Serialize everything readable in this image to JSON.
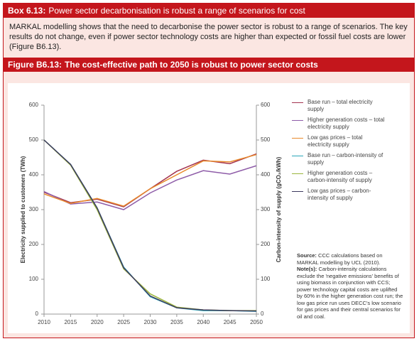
{
  "box": {
    "label": "Box 6.13:",
    "title": "Power sector decarbonisation is robust a range of scenarios for cost",
    "text": "MARKAL modelling shows that the need to decarbonise the power sector is robust to a range of scenarios. The key results do not change, even if power sector technology costs are higher than expected or fossil fuel costs are lower (Figure B6.13)."
  },
  "figure": {
    "label": "Figure B6.13:",
    "title": "The cost-effective path to 2050 is robust to power sector costs",
    "source_label": "Source:",
    "source": "CCC calculations based on MARKAL modelling by UCL (2010).",
    "note_label": "Note(s):",
    "note": "Carbon-intensity calculations exclude the 'negative emissions' benefits of using biomass in conjunction with CCS; power technology capital costs are uplifted by 60% in the higher generation cost run; the low gas price run uses DECC's low scenario for gas prices and their central scenarios for oil and coal."
  },
  "chart_data": {
    "type": "line",
    "x": [
      2010,
      2015,
      2020,
      2025,
      2030,
      2035,
      2040,
      2045,
      2050
    ],
    "xlim": [
      2010,
      2050
    ],
    "xticks": [
      2010,
      2015,
      2020,
      2025,
      2030,
      2035,
      2040,
      2045,
      2050
    ],
    "ylabel": "Electricity supplied to customers (TWh)",
    "ylim": [
      0,
      600
    ],
    "yticks": [
      0,
      100,
      200,
      300,
      400,
      500,
      600
    ],
    "y2label": "Carbon-intensity of supply (gCO₂/kWh)",
    "y2lim": [
      0,
      600
    ],
    "y2ticks": [
      0,
      100,
      200,
      300,
      400,
      500,
      600
    ],
    "grid": false,
    "legend": "right",
    "series": [
      {
        "name": "Base run – total electricity supply",
        "color": "#a3334f",
        "values": [
          350,
          320,
          330,
          308,
          360,
          410,
          442,
          432,
          460
        ]
      },
      {
        "name": "Higher generation costs – total electricity supply",
        "color": "#8e5ca8",
        "values": [
          352,
          316,
          322,
          300,
          348,
          385,
          412,
          402,
          426
        ]
      },
      {
        "name": "Low gas prices – total electricity supply",
        "color": "#e8892b",
        "values": [
          345,
          318,
          332,
          310,
          360,
          400,
          440,
          437,
          458
        ]
      },
      {
        "name": "Base run – carbon-intensity of supply",
        "color": "#2aa7b8",
        "axis": "y2",
        "values": [
          500,
          430,
          305,
          135,
          50,
          18,
          10,
          10,
          8
        ]
      },
      {
        "name": "Higher generation costs – carbon-intensity of supply",
        "color": "#9ab53c",
        "axis": "y2",
        "values": [
          500,
          428,
          300,
          130,
          58,
          20,
          12,
          10,
          10
        ]
      },
      {
        "name": "Low gas prices – carbon-intensity of supply",
        "color": "#3d3a5e",
        "axis": "y2",
        "values": [
          500,
          430,
          305,
          133,
          52,
          18,
          12,
          10,
          9
        ]
      }
    ]
  }
}
